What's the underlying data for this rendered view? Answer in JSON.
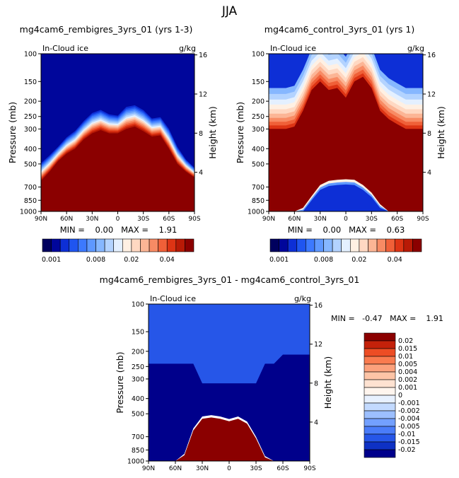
{
  "season": "JJA",
  "colors": {
    "dark_red": "#8b0000",
    "dark_blue": "#00008b",
    "seam": "#ffffff"
  },
  "chart_data": [
    {
      "id": "panel1",
      "type": "contour",
      "title": "mg4cam6_rembigres_3yrs_01 (yrs 1-3)",
      "field_label": "In-Cloud ice",
      "units": "g/kg",
      "ylabel": "Pressure (mb)",
      "ylabel_right": "Height (km)",
      "x_ticks": [
        "90N",
        "60N",
        "30N",
        "0",
        "30S",
        "60S",
        "90S"
      ],
      "x_range": [
        90,
        -90
      ],
      "p_ticks": [
        100,
        150,
        200,
        250,
        300,
        400,
        500,
        700,
        850,
        1000
      ],
      "h_ticks": [
        16,
        12,
        8,
        4
      ],
      "p_range": [
        100,
        1000
      ],
      "stats_text": "MIN =    0.00   MAX =    1.91",
      "surface": {
        "lat": [
          90,
          80,
          70,
          60,
          50,
          40,
          30,
          20,
          10,
          0,
          -10,
          -20,
          -30,
          -40,
          -50,
          -60,
          -70,
          -80,
          -90
        ],
        "p_warm_top": [
          640,
          560,
          480,
          430,
          400,
          350,
          320,
          305,
          320,
          320,
          300,
          290,
          310,
          335,
          330,
          400,
          500,
          560,
          610
        ],
        "p_min_gradient": [
          480,
          430,
          380,
          330,
          300,
          260,
          230,
          220,
          235,
          240,
          210,
          205,
          220,
          250,
          245,
          290,
          380,
          460,
          520
        ]
      },
      "colorbar_labels": [
        "0.001",
        "0.008",
        "0.02",
        "0.04"
      ]
    },
    {
      "id": "panel2",
      "type": "contour",
      "title": "mg4cam6_control_3yrs_01 (yrs 1)",
      "field_label": "In-Cloud ice",
      "units": "g/kg",
      "ylabel": "Pressure (mb)",
      "ylabel_right": "Height (km)",
      "x_ticks": [
        "90N",
        "60N",
        "30N",
        "0",
        "30S",
        "60S",
        "90S"
      ],
      "x_range": [
        90,
        -90
      ],
      "p_ticks": [
        100,
        150,
        200,
        250,
        300,
        400,
        500,
        700,
        850,
        1000
      ],
      "h_ticks": [
        16,
        12,
        8,
        4
      ],
      "p_range": [
        100,
        1000
      ],
      "stats_text": "MIN =    0.00   MAX =    0.63",
      "surface": {
        "lat": [
          90,
          80,
          70,
          60,
          50,
          40,
          30,
          20,
          10,
          0,
          -10,
          -20,
          -30,
          -40,
          -50,
          -60,
          -70,
          -80,
          -90
        ],
        "p_warm_top": [
          300,
          300,
          300,
          290,
          230,
          170,
          150,
          170,
          165,
          190,
          150,
          140,
          165,
          230,
          260,
          280,
          300,
          300,
          300
        ],
        "p_lower_blue": [
          1000,
          1000,
          1000,
          1000,
          950,
          800,
          680,
          640,
          630,
          625,
          630,
          680,
          760,
          900,
          1000,
          1000,
          1000,
          1000,
          1000
        ]
      },
      "colorbar_labels": [
        "0.001",
        "0.008",
        "0.02",
        "0.04"
      ]
    },
    {
      "id": "panel3",
      "type": "contour",
      "title": "mg4cam6_rembigres_3yrs_01 - mg4cam6_control_3yrs_01",
      "field_label": "In-Cloud ice",
      "units": "g/kg",
      "ylabel": "Pressure (mb)",
      "ylabel_right": "Height (km)",
      "x_ticks": [
        "90N",
        "60N",
        "30N",
        "0",
        "30S",
        "60S",
        "90S"
      ],
      "x_range": [
        90,
        -90
      ],
      "p_ticks": [
        100,
        150,
        200,
        250,
        300,
        400,
        500,
        700,
        850,
        1000
      ],
      "h_ticks": [
        16,
        12,
        8,
        4
      ],
      "p_range": [
        100,
        1000
      ],
      "stats_text": "MIN =   -0.47   MAX =    1.91",
      "surface": {
        "lat": [
          90,
          80,
          70,
          60,
          50,
          40,
          30,
          20,
          10,
          0,
          -10,
          -20,
          -30,
          -40,
          -50,
          -60,
          -70,
          -80,
          -90
        ],
        "p_lower_red": [
          1000,
          1000,
          1000,
          1000,
          900,
          620,
          520,
          510,
          520,
          540,
          520,
          560,
          700,
          930,
          1000,
          1000,
          1000,
          1000,
          1000
        ]
      },
      "colorbar_labels": [
        "0.02",
        "0.015",
        "0.01",
        "0.005",
        "0.004",
        "0.002",
        "0.001",
        "0",
        "-0.001",
        "-0.002",
        "-0.004",
        "-0.005",
        "-0.01",
        "-0.015",
        "-0.02"
      ]
    }
  ]
}
